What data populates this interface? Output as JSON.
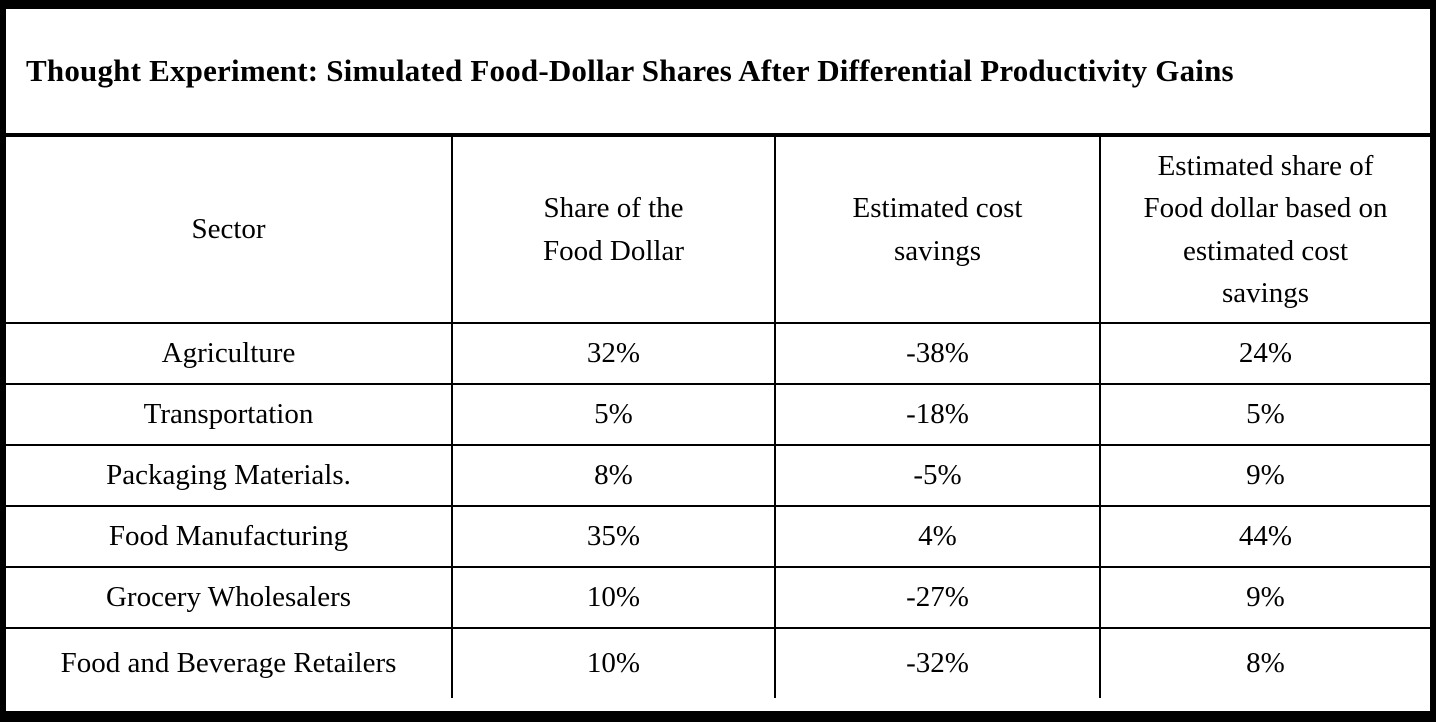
{
  "title": "Thought Experiment: Simulated Food-Dollar Shares After Differential Productivity Gains",
  "table": {
    "columns": [
      "Sector",
      "Share of the\nFood Dollar",
      "Estimated cost\nsavings",
      "Estimated share of\nFood dollar based on\nestimated cost\nsavings"
    ],
    "rows": [
      [
        "Agriculture",
        "32%",
        "-38%",
        "24%"
      ],
      [
        "Transportation",
        "5%",
        "-18%",
        "5%"
      ],
      [
        "Packaging Materials.",
        "8%",
        "-5%",
        "9%"
      ],
      [
        "Food Manufacturing",
        "35%",
        "4%",
        "44%"
      ],
      [
        "Grocery Wholesalers",
        "10%",
        "-27%",
        "9%"
      ],
      [
        "Food and Beverage Retailers",
        "10%",
        "-32%",
        "8%"
      ]
    ]
  },
  "colors": {
    "border": "#000000",
    "text": "#000000",
    "background": "#ffffff"
  }
}
